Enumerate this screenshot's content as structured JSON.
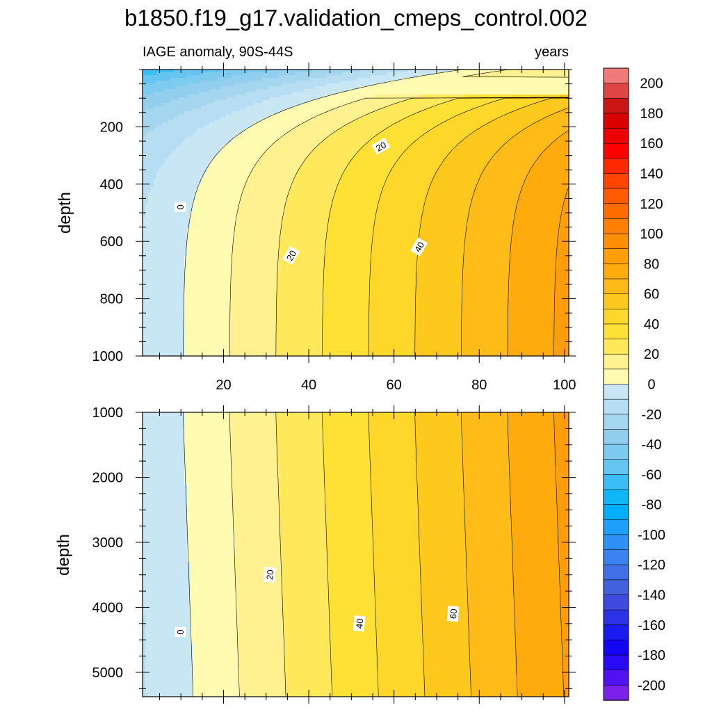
{
  "chart_data": {
    "type": "contour",
    "title": "b1850.f19_g17.validation_cmeps_control.002",
    "subtitle_left": "IAGE anomaly, 90S-44S",
    "subtitle_right": "years",
    "ylabel": "depth",
    "x_tick_labels": [
      "20",
      "40",
      "60",
      "80",
      "100"
    ],
    "x_tick_values": [
      20,
      40,
      60,
      80,
      100
    ],
    "x_range": [
      1,
      101
    ],
    "panels": [
      {
        "name": "upper",
        "y_range": [
          0,
          1000
        ],
        "y_ticks": [
          200,
          400,
          600,
          800,
          1000
        ],
        "y_tick_labels": [
          "200",
          "400",
          "600",
          "800",
          "1000"
        ],
        "contour_labels": [
          {
            "text": "0",
            "x": 10,
            "y": 480
          },
          {
            "text": "20",
            "x": 36,
            "y": 650
          },
          {
            "text": "20",
            "x": 57,
            "y": 270
          },
          {
            "text": "40",
            "x": 66,
            "y": 620
          }
        ]
      },
      {
        "name": "lower",
        "y_range": [
          1000,
          5375
        ],
        "y_ticks": [
          1000,
          2000,
          3000,
          4000,
          5000
        ],
        "y_tick_labels": [
          "1000",
          "2000",
          "3000",
          "4000",
          "5000"
        ],
        "contour_labels": [
          {
            "text": "0",
            "x": 10,
            "y": 4380
          },
          {
            "text": "20",
            "x": 31,
            "y": 3500
          },
          {
            "text": "40",
            "x": 52,
            "y": 4250
          },
          {
            "text": "60",
            "x": 74,
            "y": 4100
          }
        ]
      }
    ],
    "colorbar": {
      "min": -210,
      "max": 210,
      "step": 10,
      "labels": [
        "200",
        "180",
        "160",
        "140",
        "120",
        "100",
        "80",
        "60",
        "40",
        "20",
        "0",
        "-20",
        "-40",
        "-60",
        "-80",
        "-100",
        "-120",
        "-140",
        "-160",
        "-180",
        "-200"
      ]
    }
  }
}
